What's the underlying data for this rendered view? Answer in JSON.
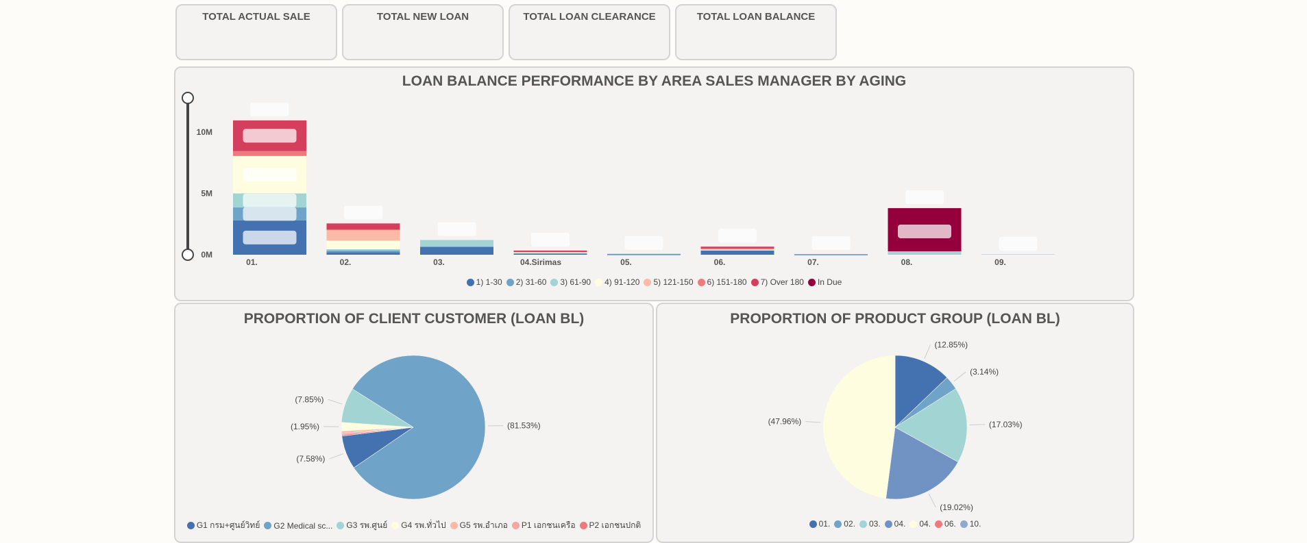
{
  "kpi_cards": [
    {
      "label": "TOTAL ACTUAL SALE"
    },
    {
      "label": "TOTAL NEW LOAN"
    },
    {
      "label": "TOTAL LOAN CLEARANCE"
    },
    {
      "label": "TOTAL LOAN BALANCE"
    }
  ],
  "chart_data": [
    {
      "type": "bar",
      "stacked": true,
      "title": "LOAN BALANCE PERFORMANCE BY AREA SALES MANAGER BY AGING",
      "categories": [
        "01.",
        "02.",
        "03.",
        "04.Sirimas",
        "05.",
        "06.",
        "07.",
        "08.",
        "09."
      ],
      "ylim": [
        0,
        12000000
      ],
      "yticks": [
        {
          "value": 0,
          "label": "0M"
        },
        {
          "value": 5000000,
          "label": "5M"
        },
        {
          "value": 10000000,
          "label": "10M"
        }
      ],
      "legend_position": "bottom",
      "series": [
        {
          "name": "1) 1-30",
          "color": "#4472b1",
          "values": [
            2800000,
            200000,
            650000,
            80000,
            30000,
            350000,
            20000,
            0,
            0
          ]
        },
        {
          "name": "2) 31-60",
          "color": "#6fa3c7",
          "values": [
            1050000,
            150000,
            0,
            50000,
            40000,
            0,
            30000,
            0,
            0
          ]
        },
        {
          "name": "3) 61-90",
          "color": "#a2d4d3",
          "values": [
            1150000,
            100000,
            550000,
            0,
            0,
            0,
            0,
            0,
            0
          ]
        },
        {
          "name": "4) 91-120",
          "color": "#fefde0",
          "values": [
            3050000,
            700000,
            0,
            80000,
            0,
            80000,
            0,
            0,
            0
          ]
        },
        {
          "name": "5) 121-150",
          "color": "#fbb9a6",
          "values": [
            0,
            850000,
            0,
            0,
            0,
            0,
            0,
            0,
            0
          ]
        },
        {
          "name": "6) 151-180",
          "color": "#ef7a7e",
          "values": [
            400000,
            50000,
            0,
            0,
            0,
            80000,
            0,
            0,
            0
          ]
        },
        {
          "name": "7) Over 180",
          "color": "#d33f5d",
          "values": [
            2500000,
            500000,
            0,
            130000,
            0,
            150000,
            0,
            0,
            0
          ]
        },
        {
          "name": "In Due",
          "color": "#94003c",
          "values": [
            0,
            0,
            0,
            0,
            0,
            0,
            0,
            3800000,
            0
          ]
        }
      ],
      "extra": {
        "08.": {
          "1) 1-30 band under In Due": 0
        }
      }
    },
    {
      "type": "pie",
      "title": "PROPORTION OF CLIENT CUSTOMER (LOAN BL)",
      "legend_position": "bottom",
      "slices": [
        {
          "name": "G1 กรม+ศูนย์วิทย์",
          "value": 7.58,
          "label": "(7.58%)",
          "color": "#4472b1"
        },
        {
          "name": "G2 Medical sc...",
          "value": 81.53,
          "label": "(81.53%)",
          "color": "#6fa3c7"
        },
        {
          "name": "G3 รพ.ศูนย์",
          "value": 7.85,
          "label": "(7.85%)",
          "color": "#a2d4d3"
        },
        {
          "name": "G4 รพ.ทั่วไป",
          "value": 1.95,
          "label": "(1.95%)",
          "color": "#fefde0"
        },
        {
          "name": "G5 รพ.อำเภอ",
          "value": 0.45,
          "label": "",
          "color": "#fbb9a6"
        },
        {
          "name": "P1 เอกชนเครือ",
          "value": 0.34,
          "label": "",
          "color": "#f4a7a3"
        },
        {
          "name": "P2 เอกชนปกติ",
          "value": 0.3,
          "label": "",
          "color": "#ef7a7e"
        }
      ]
    },
    {
      "type": "pie",
      "title": "PROPORTION OF PRODUCT GROUP (LOAN BL)",
      "legend_position": "bottom",
      "slices": [
        {
          "name": "01.",
          "value": 12.85,
          "label": "(12.85%)",
          "color": "#4472b1"
        },
        {
          "name": "02.",
          "value": 3.14,
          "label": "(3.14%)",
          "color": "#6fa3c7"
        },
        {
          "name": "03.",
          "value": 17.03,
          "label": "(17.03%)",
          "color": "#a2d4d3"
        },
        {
          "name": "04.",
          "value": 19.02,
          "label": "(19.02%)",
          "color": "#7093c4"
        },
        {
          "name": "04.",
          "value": 47.96,
          "label": "(47.96%)",
          "color": "#fefde0"
        },
        {
          "name": "06.",
          "value": 0.0,
          "label": "",
          "color": "#ef7a7e"
        },
        {
          "name": "10.",
          "value": 0.0,
          "label": "",
          "color": "#8ea9d0"
        }
      ]
    }
  ]
}
